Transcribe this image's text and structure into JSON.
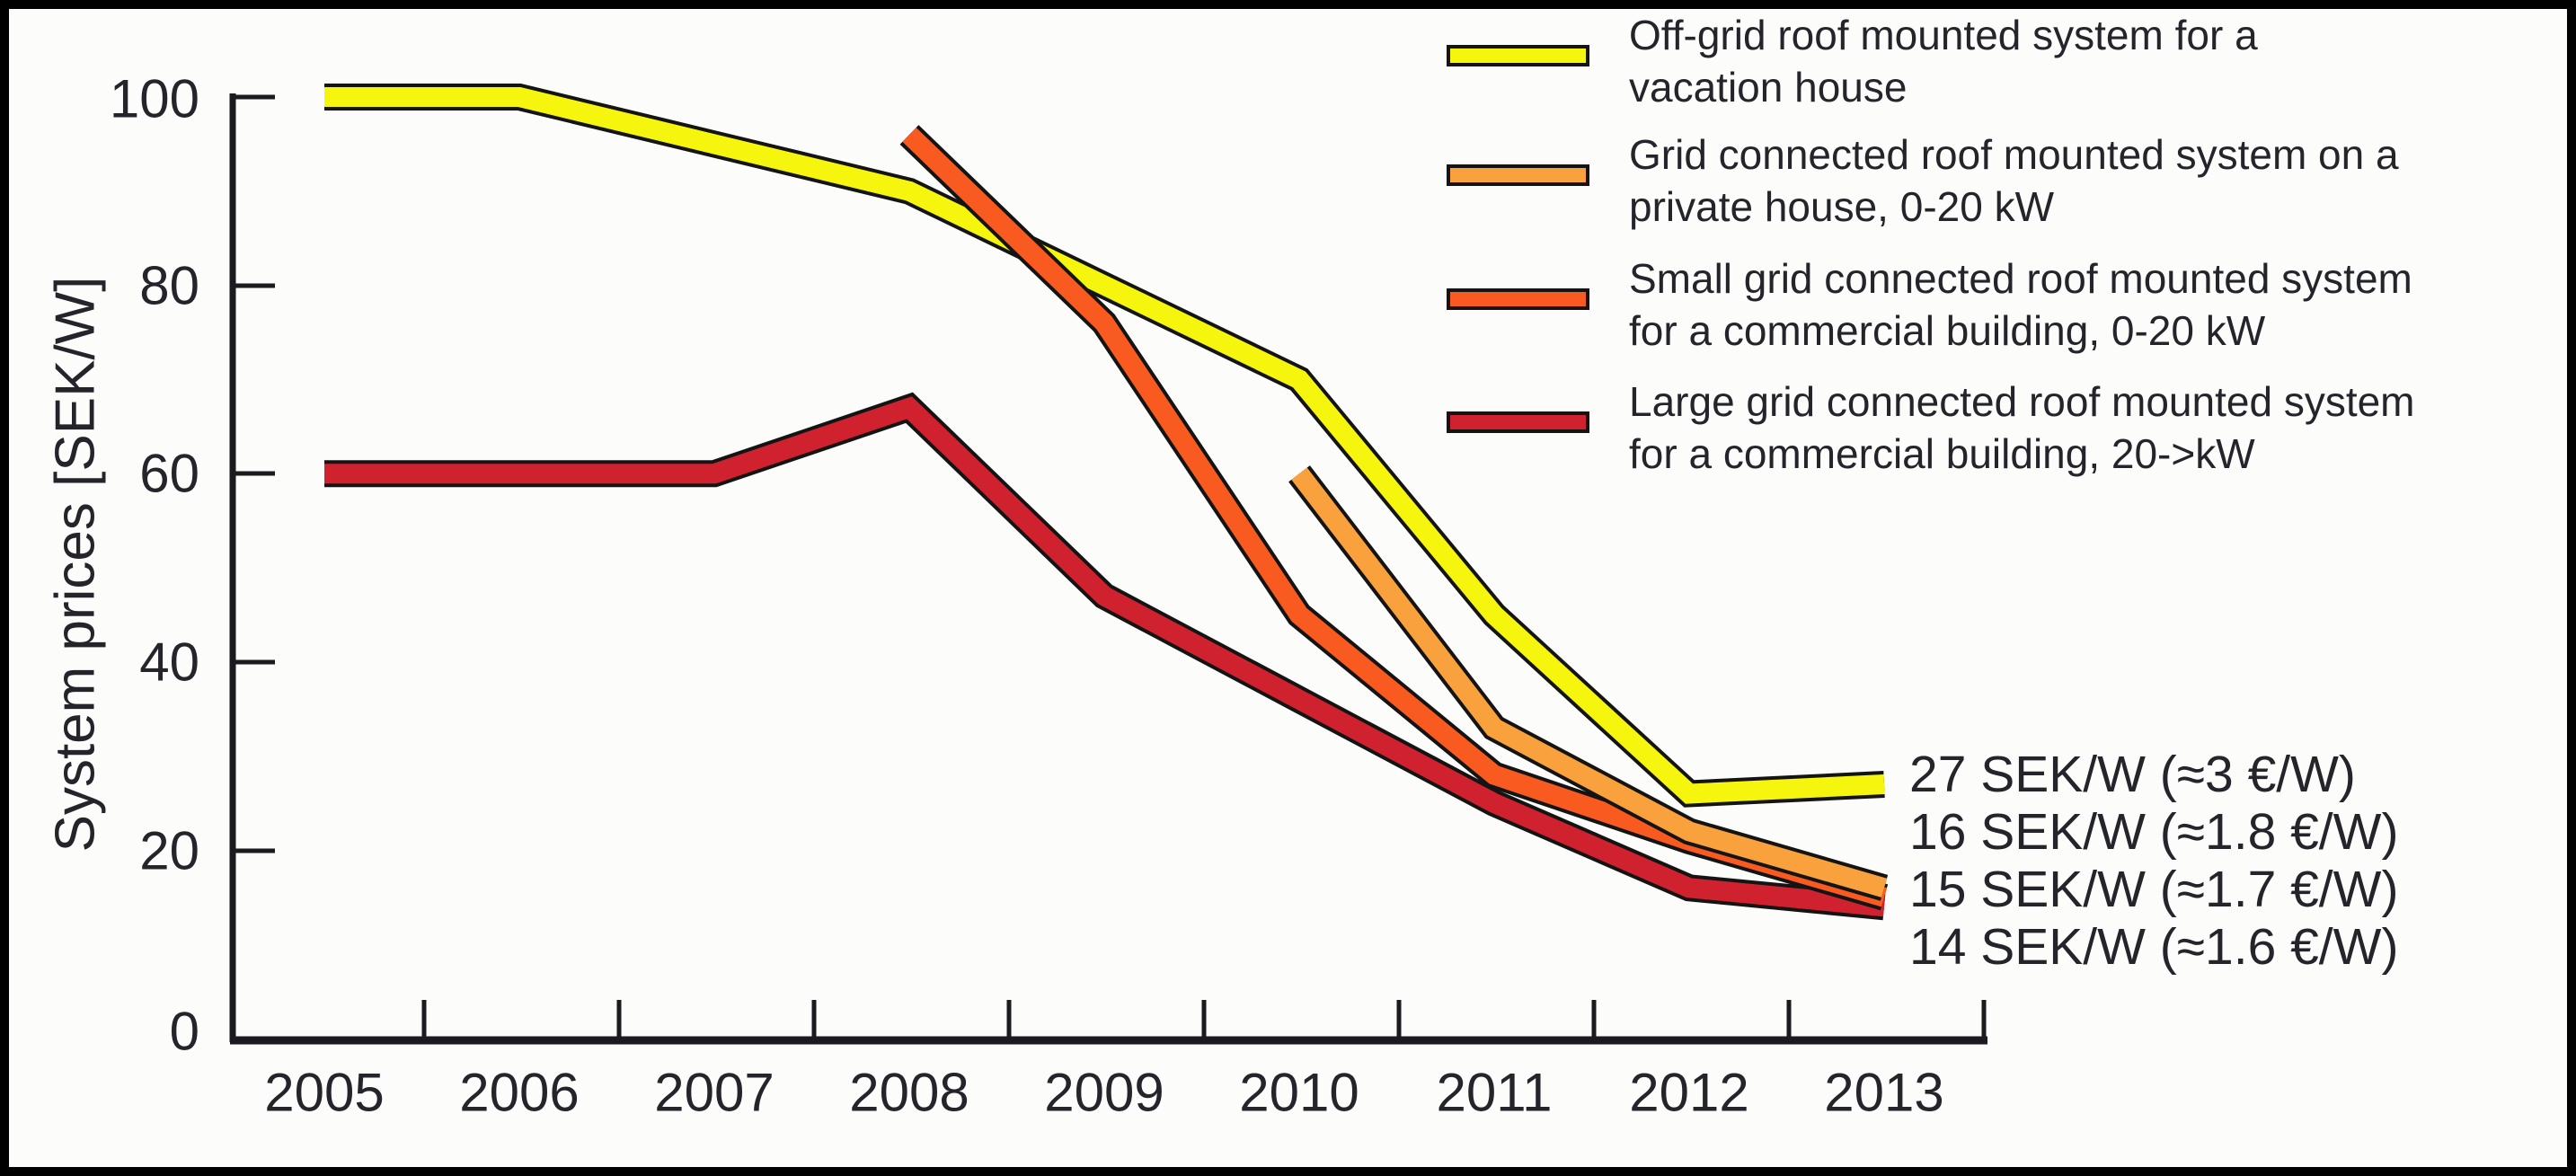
{
  "figure": {
    "background": "#fcfcfb",
    "frame_color": "#000000",
    "text_color": "#26242b",
    "axis_color": "#1c1a1e"
  },
  "y_axis": {
    "title": "System prices [SEK/W]",
    "tick_labels": [
      "100",
      "80",
      "60",
      "40",
      "20",
      "0"
    ]
  },
  "x_axis": {
    "tick_labels": [
      "2005",
      "2006",
      "2007",
      "2008",
      "2009",
      "2010",
      "2011",
      "2012",
      "2013"
    ]
  },
  "legend": {
    "items": [
      {
        "color": "#f5f50d",
        "line1": "Off-grid roof mounted system for a",
        "line2": "vacation house"
      },
      {
        "color": "#f9a13c",
        "line1": "Grid connected roof mounted system on a",
        "line2": "private house, 0-20 kW"
      },
      {
        "color": "#f85a1f",
        "line1": "Small grid connected roof mounted system",
        "line2": "for a commercial building, 0-20 kW"
      },
      {
        "color": "#d0212f",
        "line1": "Large grid connected roof mounted system",
        "line2": "for a commercial building, 20->kW"
      }
    ]
  },
  "annotations": [
    "27 SEK/W (≈3 €/W)",
    "16 SEK/W (≈1.8 €/W)",
    "15 SEK/W (≈1.7 €/W)",
    "14 SEK/W (≈1.6 €/W)"
  ],
  "chart_data": {
    "type": "line",
    "title": "",
    "xlabel": "",
    "ylabel": "System prices [SEK/W]",
    "x_range": [
      2005,
      2013
    ],
    "ylim": [
      0,
      100
    ],
    "yticks": [
      0,
      20,
      40,
      60,
      80,
      100
    ],
    "grid": false,
    "legend_position": "top-right",
    "series": [
      {
        "id": "off-grid-vacation",
        "name": "Off-grid roof mounted system for a vacation house",
        "color": "#f5f50d",
        "x": [
          2005,
          2006,
          2007,
          2008,
          2009,
          2010,
          2011,
          2012,
          2013
        ],
        "values": [
          100,
          100,
          95,
          90,
          80,
          70,
          45,
          26,
          27
        ],
        "end_label": "27 SEK/W (≈3 €/W)"
      },
      {
        "id": "grid-private-house",
        "name": "Grid connected roof mounted system on a private house, 0-20 kW",
        "color": "#f9a13c",
        "x": [
          2010,
          2011,
          2012,
          2013
        ],
        "values": [
          60,
          33,
          22,
          16
        ],
        "end_label": "16 SEK/W (≈1.8 €/W)"
      },
      {
        "id": "small-grid-commercial",
        "name": "Small grid connected roof mounted system for a commercial building, 0-20 kW",
        "color": "#f85a1f",
        "x": [
          2008,
          2009,
          2010,
          2011,
          2012,
          2013
        ],
        "values": [
          96,
          76,
          45,
          28,
          21,
          15
        ],
        "end_label": "15 SEK/W (≈1.7 €/W)"
      },
      {
        "id": "large-grid-commercial",
        "name": "Large grid connected roof mounted system for a commercial building, 20->kW",
        "color": "#d0212f",
        "x": [
          2005,
          2006,
          2007,
          2008,
          2009,
          2010,
          2011,
          2012,
          2013
        ],
        "values": [
          60,
          60,
          60,
          67,
          47,
          36,
          25,
          16,
          14
        ],
        "end_label": "14 SEK/W (≈1.6 €/W)"
      }
    ]
  }
}
